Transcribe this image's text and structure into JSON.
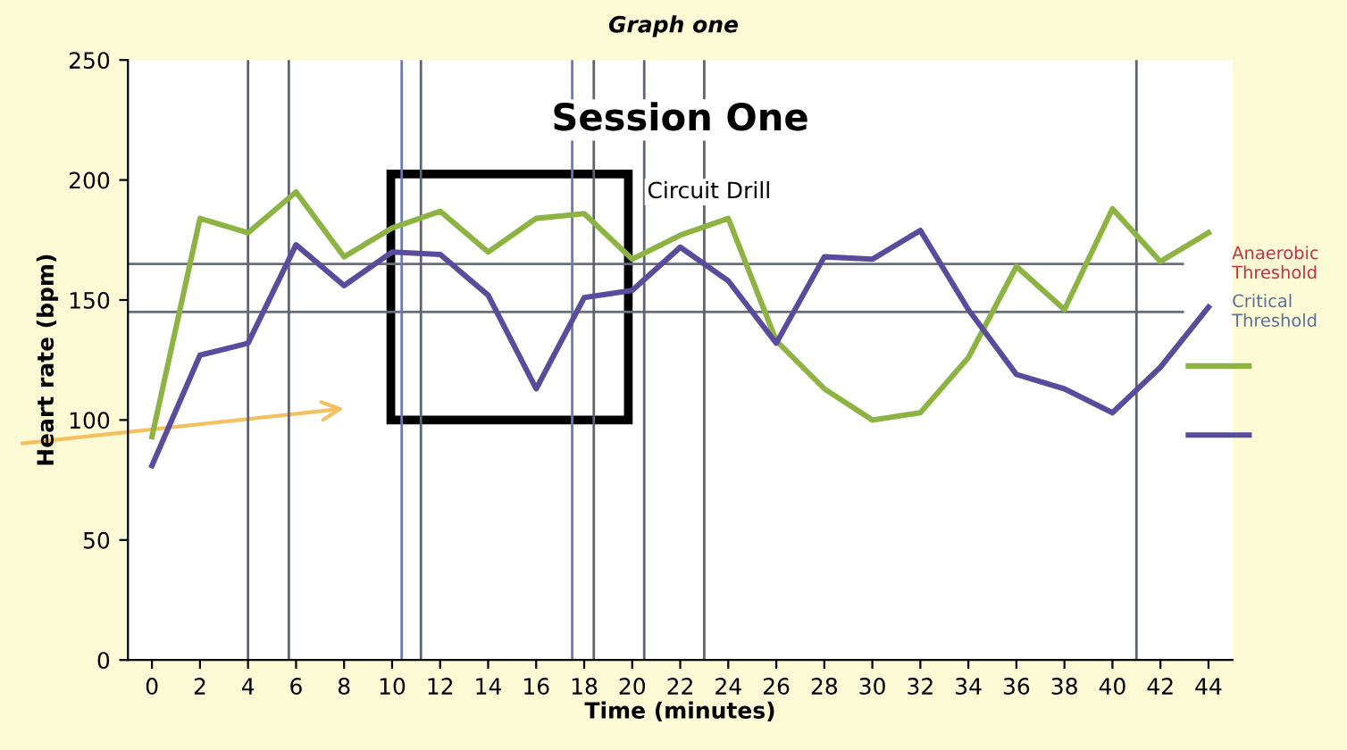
{
  "chart_data": {
    "type": "line",
    "title": "Graph one",
    "subtitle": "Session One",
    "xlabel": "Time (minutes)",
    "ylabel": "Heart rate (bpm)",
    "x": [
      0,
      2,
      4,
      6,
      8,
      10,
      12,
      14,
      16,
      18,
      20,
      22,
      24,
      26,
      28,
      30,
      32,
      34,
      36,
      38,
      40,
      42,
      44
    ],
    "series": [
      {
        "color": "#8db443",
        "values": [
          93,
          184,
          178,
          195,
          168,
          180,
          187,
          170,
          184,
          186,
          167,
          177,
          184,
          133,
          113,
          100,
          103,
          126,
          164,
          146,
          188,
          166,
          178
        ]
      },
      {
        "color": "#5a4c9c",
        "values": [
          81,
          127,
          132,
          173,
          156,
          170,
          169,
          152,
          113,
          151,
          154,
          172,
          158,
          132,
          168,
          167,
          179,
          146,
          119,
          113,
          103,
          122,
          147
        ]
      }
    ],
    "xlim": [
      -1,
      45
    ],
    "ylim": [
      0,
      250
    ],
    "xticks": [
      0,
      2,
      4,
      6,
      8,
      10,
      12,
      14,
      16,
      18,
      20,
      22,
      24,
      26,
      28,
      30,
      32,
      34,
      36,
      38,
      40,
      42,
      44
    ],
    "yticks": [
      0,
      50,
      100,
      150,
      200,
      250
    ],
    "ref_lines": [
      {
        "axis": "y",
        "value": 165,
        "label": "Anaerobic Threshold",
        "color": "#6a6e78"
      },
      {
        "axis": "y",
        "value": 145,
        "label": "Critical Threshold",
        "color": "#6a6e78"
      },
      {
        "axis": "x",
        "value": 4,
        "color": "#5f6470"
      },
      {
        "axis": "x",
        "value": 5.7,
        "color": "#5f6470"
      },
      {
        "axis": "x",
        "value": 10.4,
        "color": "#6c78b8"
      },
      {
        "axis": "x",
        "value": 11.2,
        "color": "#5f6470"
      },
      {
        "axis": "x",
        "value": 17.5,
        "color": "#6c78b8"
      },
      {
        "axis": "x",
        "value": 18.4,
        "color": "#5f6470"
      },
      {
        "axis": "x",
        "value": 20.5,
        "color": "#5f6470"
      },
      {
        "axis": "x",
        "value": 23,
        "color": "#5f6470"
      },
      {
        "axis": "x",
        "value": 41,
        "color": "#5f6470"
      }
    ],
    "annotations": [
      "Circuit Drill"
    ],
    "legend": "right",
    "grid": false,
    "marker": "none",
    "line_style": "solid"
  }
}
